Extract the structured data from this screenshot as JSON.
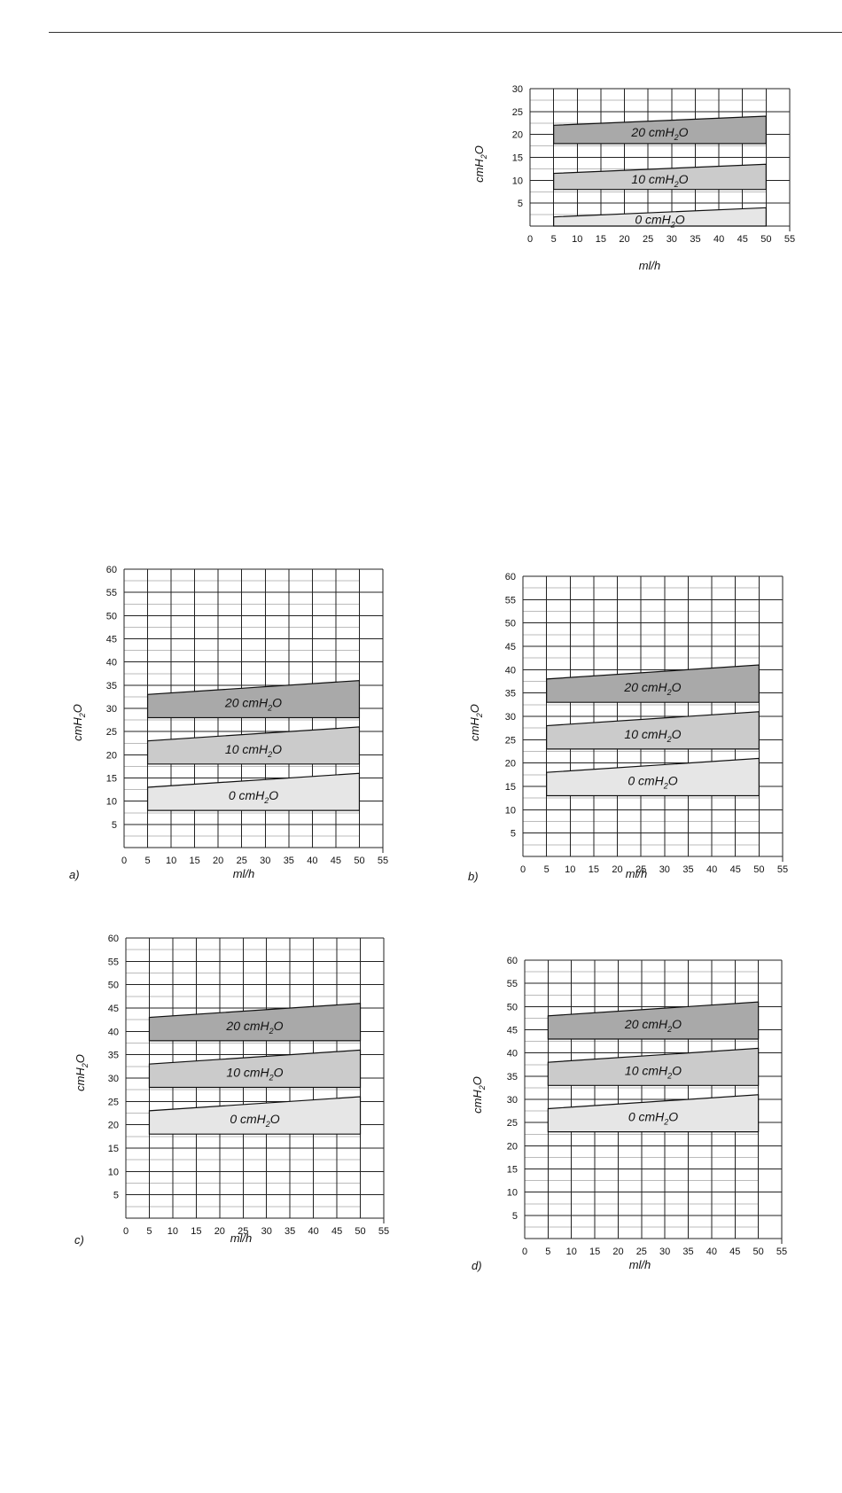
{
  "chart_data": [
    {
      "type": "area",
      "panel_label": "",
      "xlabel": "ml/h",
      "ylabel": "cmH2O",
      "xlim": [
        0,
        55
      ],
      "ylim": [
        0,
        30
      ],
      "xticks": [
        "0",
        "5",
        "10",
        "15",
        "20",
        "25",
        "30",
        "35",
        "40",
        "45",
        "50",
        "55"
      ],
      "yticks": [
        "5",
        "10",
        "15",
        "20",
        "25",
        "30"
      ],
      "grid": true,
      "bands": [
        {
          "label_main": "0 cmH",
          "label_sub": "2",
          "label_end": "O",
          "x": [
            5,
            50
          ],
          "lower": [
            0,
            0
          ],
          "upper": [
            2,
            4
          ],
          "color": "#e6e6e6"
        },
        {
          "label_main": "10 cmH",
          "label_sub": "2",
          "label_end": "O",
          "x": [
            5,
            50
          ],
          "lower": [
            8,
            8
          ],
          "upper": [
            11.5,
            13.5
          ],
          "color": "#cbcbcb"
        },
        {
          "label_main": "20 cmH",
          "label_sub": "2",
          "label_end": "O",
          "x": [
            5,
            50
          ],
          "lower": [
            18,
            18
          ],
          "upper": [
            22,
            24
          ],
          "color": "#a9a9a9"
        }
      ]
    },
    {
      "type": "area",
      "panel_label": "a)",
      "xlabel": "ml/h",
      "ylabel": "cmH2O",
      "xlim": [
        0,
        55
      ],
      "ylim": [
        0,
        60
      ],
      "xticks": [
        "0",
        "5",
        "10",
        "15",
        "20",
        "25",
        "30",
        "35",
        "40",
        "45",
        "50",
        "55"
      ],
      "yticks": [
        "5",
        "10",
        "15",
        "20",
        "25",
        "30",
        "35",
        "40",
        "45",
        "50",
        "55",
        "60"
      ],
      "grid": true,
      "bands": [
        {
          "label_main": "0 cmH",
          "label_sub": "2",
          "label_end": "O",
          "x": [
            5,
            50
          ],
          "lower": [
            8,
            8
          ],
          "upper": [
            13,
            16
          ],
          "color": "#e6e6e6"
        },
        {
          "label_main": "10 cmH",
          "label_sub": "2",
          "label_end": "O",
          "x": [
            5,
            50
          ],
          "lower": [
            18,
            18
          ],
          "upper": [
            23,
            26
          ],
          "color": "#cbcbcb"
        },
        {
          "label_main": "20 cmH",
          "label_sub": "2",
          "label_end": "O",
          "x": [
            5,
            50
          ],
          "lower": [
            28,
            28
          ],
          "upper": [
            33,
            36
          ],
          "color": "#a9a9a9"
        }
      ]
    },
    {
      "type": "area",
      "panel_label": "b)",
      "xlabel": "ml/h",
      "ylabel": "cmH2O",
      "xlim": [
        0,
        55
      ],
      "ylim": [
        0,
        60
      ],
      "xticks": [
        "0",
        "5",
        "10",
        "15",
        "20",
        "25",
        "30",
        "35",
        "40",
        "45",
        "50",
        "55"
      ],
      "yticks": [
        "5",
        "10",
        "15",
        "20",
        "25",
        "30",
        "35",
        "40",
        "45",
        "50",
        "55",
        "60"
      ],
      "grid": true,
      "bands": [
        {
          "label_main": "0 cmH",
          "label_sub": "2",
          "label_end": "O",
          "x": [
            5,
            50
          ],
          "lower": [
            13,
            13
          ],
          "upper": [
            18,
            21
          ],
          "color": "#e6e6e6"
        },
        {
          "label_main": "10 cmH",
          "label_sub": "2",
          "label_end": "O",
          "x": [
            5,
            50
          ],
          "lower": [
            23,
            23
          ],
          "upper": [
            28,
            31
          ],
          "color": "#cbcbcb"
        },
        {
          "label_main": "20 cmH",
          "label_sub": "2",
          "label_end": "O",
          "x": [
            5,
            50
          ],
          "lower": [
            33,
            33
          ],
          "upper": [
            38,
            41
          ],
          "color": "#a9a9a9"
        }
      ]
    },
    {
      "type": "area",
      "panel_label": "c)",
      "xlabel": "ml/h",
      "ylabel": "cmH2O",
      "xlim": [
        0,
        55
      ],
      "ylim": [
        0,
        60
      ],
      "xticks": [
        "0",
        "5",
        "10",
        "15",
        "20",
        "25",
        "30",
        "35",
        "40",
        "45",
        "50",
        "55"
      ],
      "yticks": [
        "5",
        "10",
        "15",
        "20",
        "25",
        "30",
        "35",
        "40",
        "45",
        "50",
        "55",
        "60"
      ],
      "grid": true,
      "bands": [
        {
          "label_main": "0 cmH",
          "label_sub": "2",
          "label_end": "O",
          "x": [
            5,
            50
          ],
          "lower": [
            18,
            18
          ],
          "upper": [
            23,
            26
          ],
          "color": "#e6e6e6"
        },
        {
          "label_main": "10 cmH",
          "label_sub": "2",
          "label_end": "O",
          "x": [
            5,
            50
          ],
          "lower": [
            28,
            28
          ],
          "upper": [
            33,
            36
          ],
          "color": "#cbcbcb"
        },
        {
          "label_main": "20 cmH",
          "label_sub": "2",
          "label_end": "O",
          "x": [
            5,
            50
          ],
          "lower": [
            38,
            38
          ],
          "upper": [
            43,
            46
          ],
          "color": "#a9a9a9"
        }
      ]
    },
    {
      "type": "area",
      "panel_label": "d)",
      "xlabel": "ml/h",
      "ylabel": "cmH2O",
      "xlim": [
        0,
        55
      ],
      "ylim": [
        0,
        60
      ],
      "xticks": [
        "0",
        "5",
        "10",
        "15",
        "20",
        "25",
        "30",
        "35",
        "40",
        "45",
        "50",
        "55"
      ],
      "yticks": [
        "5",
        "10",
        "15",
        "20",
        "25",
        "30",
        "35",
        "40",
        "45",
        "50",
        "55",
        "60"
      ],
      "grid": true,
      "bands": [
        {
          "label_main": "0 cmH",
          "label_sub": "2",
          "label_end": "O",
          "x": [
            5,
            50
          ],
          "lower": [
            23,
            23
          ],
          "upper": [
            28,
            31
          ],
          "color": "#e6e6e6"
        },
        {
          "label_main": "10 cmH",
          "label_sub": "2",
          "label_end": "O",
          "x": [
            5,
            50
          ],
          "lower": [
            33,
            33
          ],
          "upper": [
            38,
            41
          ],
          "color": "#cbcbcb"
        },
        {
          "label_main": "20 cmH",
          "label_sub": "2",
          "label_end": "O",
          "x": [
            5,
            50
          ],
          "lower": [
            43,
            43
          ],
          "upper": [
            48,
            51
          ],
          "color": "#a9a9a9"
        }
      ]
    }
  ]
}
